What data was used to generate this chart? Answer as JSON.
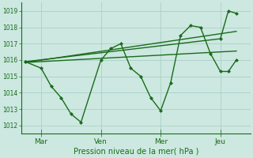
{
  "background_color": "#cce8e0",
  "line_color": "#1a6b1a",
  "grid_color": "#aacfc8",
  "title": "Pression niveau de la mer( hPa )",
  "ylim": [
    1011.5,
    1019.5
  ],
  "yticks": [
    1012,
    1013,
    1014,
    1015,
    1016,
    1017,
    1018,
    1019
  ],
  "xtick_labels": [
    "Mar",
    "Ven",
    "Mer",
    "Jeu"
  ],
  "xtick_positions": [
    1,
    4,
    7,
    10
  ],
  "xlim": [
    0,
    11.5
  ],
  "series1_x": [
    0.2,
    1.0,
    1.5,
    2.0,
    2.5,
    3.0,
    4.0,
    4.5,
    5.0,
    5.5,
    6.0,
    6.5,
    7.0,
    7.5,
    8.0,
    8.5,
    9.0,
    9.5,
    10.0,
    10.4,
    10.8
  ],
  "series1_y": [
    1015.9,
    1015.5,
    1014.4,
    1013.7,
    1012.7,
    1012.2,
    1016.0,
    1016.7,
    1017.0,
    1015.5,
    1015.0,
    1013.7,
    1012.9,
    1014.6,
    1017.5,
    1018.1,
    1018.0,
    1016.4,
    1015.3,
    1015.3,
    1016.0
  ],
  "series2_x": [
    0.2,
    10.0,
    10.4,
    10.8
  ],
  "series2_y": [
    1015.9,
    1017.3,
    1019.0,
    1018.85
  ],
  "series3_x": [
    0.2,
    10.8
  ],
  "series3_y": [
    1015.85,
    1017.75
  ],
  "series4_x": [
    0.2,
    10.8
  ],
  "series4_y": [
    1015.85,
    1016.55
  ],
  "marker_size": 2.5,
  "linewidth": 1.0
}
